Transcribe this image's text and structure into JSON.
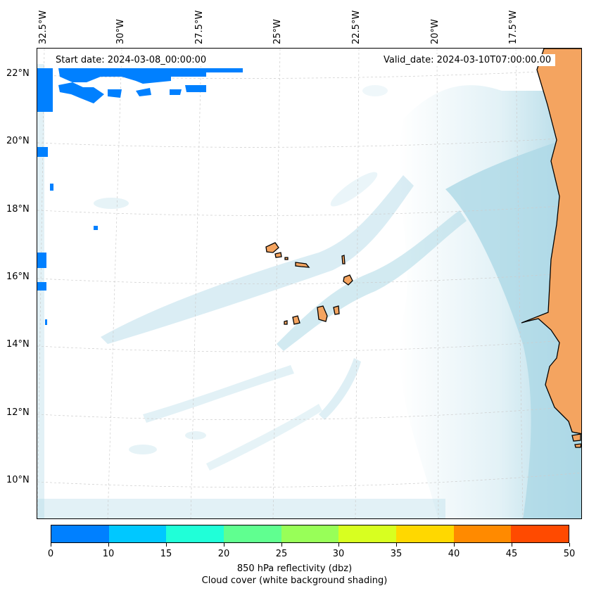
{
  "map": {
    "start_date": "Start date: 2024-03-08_00:00:00",
    "valid_date": "Valid_date: 2024-03-10T07:00:00.00",
    "lon_labels": [
      "32.5°W",
      "30°W",
      "27.5°W",
      "25°W",
      "22.5°W",
      "20°W",
      "17.5°W"
    ],
    "lat_labels": [
      "22°N",
      "20°N",
      "18°N",
      "16°N",
      "14°N",
      "12°N",
      "10°N"
    ],
    "colors": {
      "land": "#f4a460",
      "cloud": "#add8e6",
      "coast": "#000000"
    }
  },
  "colorbar": {
    "ticks": [
      "0",
      "10",
      "15",
      "20",
      "25",
      "30",
      "35",
      "40",
      "45",
      "50"
    ],
    "colors": [
      "#0080ff",
      "#00c8ff",
      "#20ffd8",
      "#60ff90",
      "#98ff58",
      "#d8ff20",
      "#ffd800",
      "#ff8a00",
      "#ff4a00"
    ],
    "label": "850 hPa reflectivity (dbz)",
    "sublabel": "Cloud cover (white background shading)"
  }
}
